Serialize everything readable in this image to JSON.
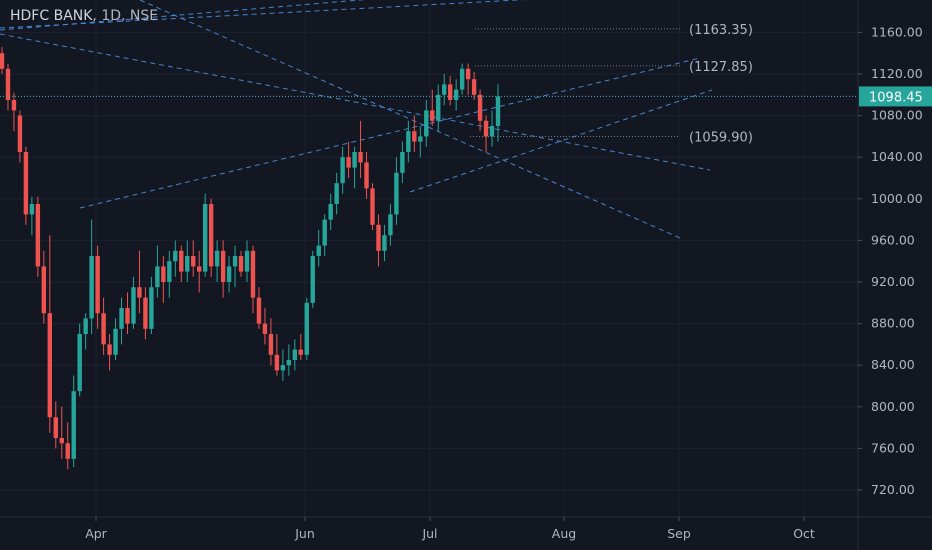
{
  "title": {
    "symbol": "HDFC BANK",
    "interval": "1D",
    "exchange": "NSE",
    "separator": ", "
  },
  "colors": {
    "background": "#131722",
    "grid": "#1e2230",
    "axis_text": "#b2b5be",
    "up": "#26a69a",
    "down": "#ef5350",
    "drawing": "#4a90e2",
    "price_line": "#48b3c4",
    "price_label_bg": "#26a69a"
  },
  "chart_data": {
    "type": "candlestick",
    "ylim": [
      700,
      1180
    ],
    "y_ticks": [
      "720.00",
      "760.00",
      "800.00",
      "840.00",
      "880.00",
      "920.00",
      "960.00",
      "1000.00",
      "1040.00",
      "1080.00",
      "1120.00",
      "1160.00"
    ],
    "x_ticks": [
      "Apr",
      "Jun",
      "Jul",
      "Aug",
      "Sep",
      "Oct"
    ],
    "last_price": "1098.45",
    "price_levels": [
      {
        "label": "(1163.35)",
        "value": 1163.35
      },
      {
        "label": "(1127.85)",
        "value": 1127.85
      },
      {
        "label": "(1059.90)",
        "value": 1059.9
      }
    ],
    "candles": [
      [
        1140,
        1146,
        1120,
        1125
      ],
      [
        1125,
        1130,
        1085,
        1095
      ],
      [
        1095,
        1102,
        1065,
        1085
      ],
      [
        1080,
        1085,
        1035,
        1045
      ],
      [
        1045,
        1050,
        975,
        985
      ],
      [
        985,
        1002,
        965,
        995
      ],
      [
        995,
        1002,
        925,
        935
      ],
      [
        935,
        950,
        880,
        890
      ],
      [
        890,
        965,
        775,
        790
      ],
      [
        790,
        805,
        760,
        770
      ],
      [
        770,
        800,
        750,
        765
      ],
      [
        765,
        785,
        740,
        750
      ],
      [
        750,
        830,
        742,
        815
      ],
      [
        815,
        880,
        810,
        870
      ],
      [
        870,
        890,
        855,
        885
      ],
      [
        885,
        980,
        870,
        945
      ],
      [
        945,
        955,
        875,
        890
      ],
      [
        890,
        905,
        850,
        860
      ],
      [
        860,
        870,
        835,
        850
      ],
      [
        850,
        885,
        845,
        875
      ],
      [
        875,
        905,
        860,
        895
      ],
      [
        895,
        910,
        870,
        880
      ],
      [
        880,
        925,
        875,
        915
      ],
      [
        915,
        950,
        890,
        905
      ],
      [
        905,
        915,
        865,
        875
      ],
      [
        875,
        925,
        870,
        915
      ],
      [
        915,
        955,
        905,
        935
      ],
      [
        935,
        945,
        900,
        920
      ],
      [
        920,
        950,
        905,
        940
      ],
      [
        940,
        960,
        925,
        950
      ],
      [
        950,
        955,
        920,
        930
      ],
      [
        930,
        960,
        920,
        945
      ],
      [
        945,
        960,
        925,
        935
      ],
      [
        935,
        950,
        910,
        930
      ],
      [
        930,
        1005,
        925,
        995
      ],
      [
        995,
        1000,
        925,
        935
      ],
      [
        935,
        960,
        920,
        950
      ],
      [
        950,
        960,
        905,
        920
      ],
      [
        920,
        945,
        910,
        935
      ],
      [
        935,
        955,
        915,
        945
      ],
      [
        945,
        950,
        925,
        930
      ],
      [
        930,
        960,
        920,
        950
      ],
      [
        950,
        955,
        890,
        905
      ],
      [
        905,
        915,
        875,
        880
      ],
      [
        880,
        895,
        860,
        870
      ],
      [
        870,
        885,
        840,
        850
      ],
      [
        850,
        870,
        830,
        835
      ],
      [
        835,
        855,
        825,
        840
      ],
      [
        840,
        860,
        830,
        845
      ],
      [
        845,
        865,
        835,
        855
      ],
      [
        855,
        870,
        845,
        850
      ],
      [
        850,
        905,
        845,
        900
      ],
      [
        900,
        950,
        895,
        945
      ],
      [
        945,
        970,
        935,
        955
      ],
      [
        955,
        985,
        945,
        980
      ],
      [
        980,
        1005,
        970,
        995
      ],
      [
        995,
        1025,
        985,
        1015
      ],
      [
        1015,
        1050,
        1005,
        1040
      ],
      [
        1040,
        1055,
        1020,
        1030
      ],
      [
        1030,
        1050,
        1010,
        1045
      ],
      [
        1045,
        1075,
        1020,
        1035
      ],
      [
        1035,
        1045,
        1000,
        1010
      ],
      [
        1010,
        1015,
        970,
        975
      ],
      [
        975,
        985,
        935,
        950
      ],
      [
        950,
        975,
        940,
        965
      ],
      [
        965,
        995,
        955,
        985
      ],
      [
        985,
        1040,
        975,
        1025
      ],
      [
        1025,
        1055,
        1015,
        1045
      ],
      [
        1045,
        1075,
        1035,
        1065
      ],
      [
        1065,
        1080,
        1045,
        1055
      ],
      [
        1055,
        1070,
        1040,
        1060
      ],
      [
        1060,
        1095,
        1050,
        1085
      ],
      [
        1085,
        1105,
        1070,
        1075
      ],
      [
        1075,
        1110,
        1065,
        1100
      ],
      [
        1100,
        1120,
        1090,
        1110
      ],
      [
        1110,
        1118,
        1090,
        1095
      ],
      [
        1095,
        1115,
        1085,
        1105
      ],
      [
        1105,
        1130,
        1100,
        1125
      ],
      [
        1125,
        1130,
        1100,
        1115
      ],
      [
        1115,
        1122,
        1095,
        1100
      ],
      [
        1100,
        1105,
        1065,
        1075
      ],
      [
        1075,
        1080,
        1045,
        1060
      ],
      [
        1060,
        1085,
        1050,
        1070
      ],
      [
        1070,
        1110,
        1055,
        1098.45
      ]
    ]
  }
}
